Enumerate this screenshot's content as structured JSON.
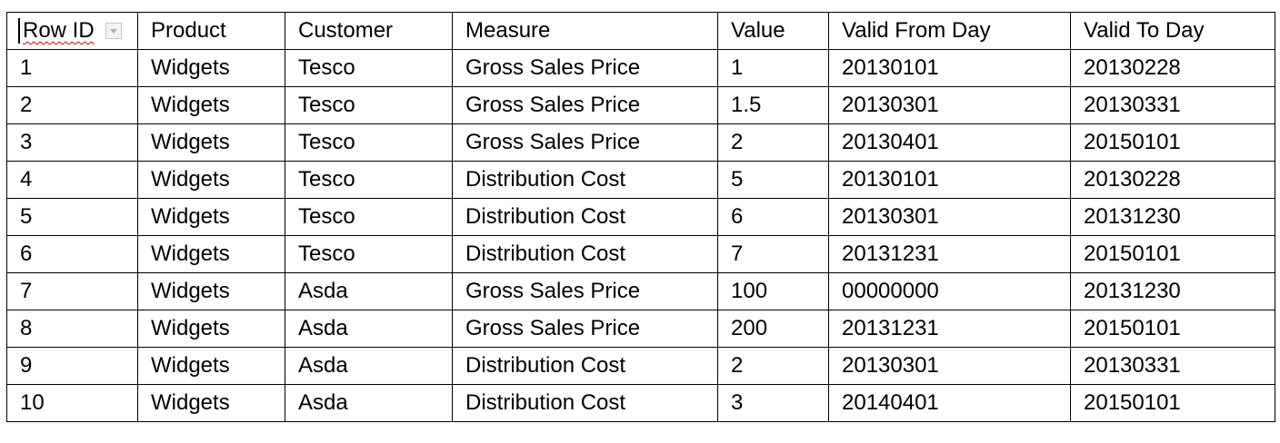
{
  "table": {
    "headers": [
      "Row ID",
      "Product",
      "Customer",
      "Measure",
      "Value",
      "Valid From Day",
      "Valid To Day"
    ],
    "rows": [
      [
        "1",
        "Widgets",
        "Tesco",
        "Gross Sales Price",
        "1",
        "20130101",
        "20130228"
      ],
      [
        "2",
        "Widgets",
        "Tesco",
        "Gross Sales Price",
        "1.5",
        "20130301",
        "20130331"
      ],
      [
        "3",
        "Widgets",
        "Tesco",
        "Gross Sales Price",
        "2",
        "20130401",
        "20150101"
      ],
      [
        "4",
        "Widgets",
        "Tesco",
        "Distribution Cost",
        "5",
        "20130101",
        "20130228"
      ],
      [
        "5",
        "Widgets",
        "Tesco",
        "Distribution Cost",
        "6",
        "20130301",
        "20131230"
      ],
      [
        "6",
        "Widgets",
        "Tesco",
        "Distribution Cost",
        "7",
        "20131231",
        "20150101"
      ],
      [
        "7",
        "Widgets",
        "Asda",
        "Gross Sales Price",
        "100",
        "00000000",
        "20131230"
      ],
      [
        "8",
        "Widgets",
        "Asda",
        "Gross Sales Price",
        "200",
        "20131231",
        "20150101"
      ],
      [
        "9",
        "Widgets",
        "Asda",
        "Distribution Cost",
        "2",
        "20130301",
        "20130331"
      ],
      [
        "10",
        "Widgets",
        "Asda",
        "Distribution Cost",
        "3",
        "20140401",
        "20150101"
      ]
    ]
  }
}
